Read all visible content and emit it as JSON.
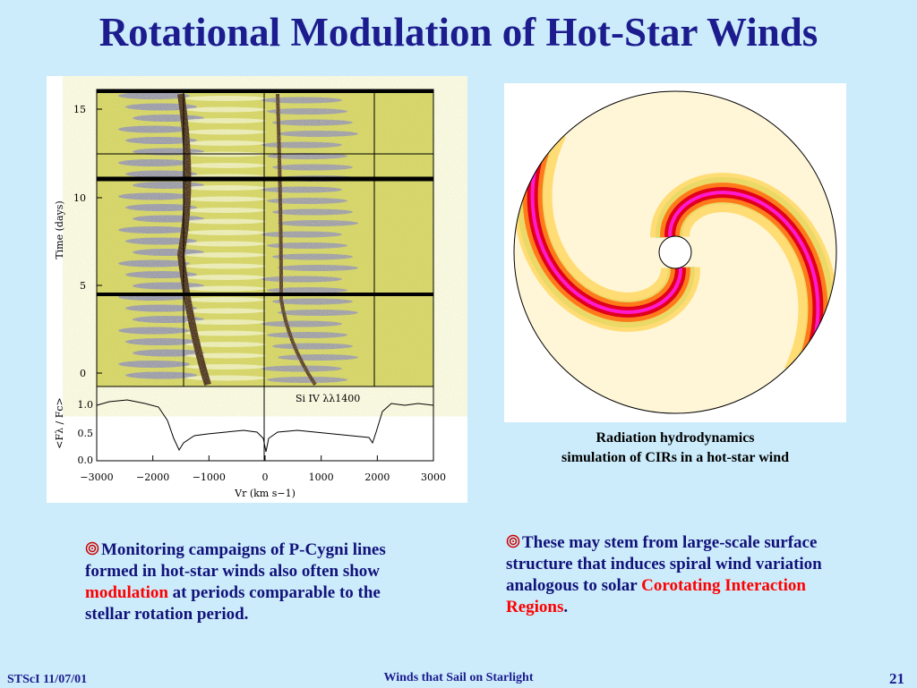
{
  "title": "Rotational Modulation of Hot-Star Winds",
  "left_figure": {
    "top_y_label": "Time (days)",
    "top_y_ticks": [
      "15",
      "10",
      "5",
      "0"
    ],
    "bottom_y_label": "<Fλ / Fc>",
    "bottom_y_ticks": [
      "1.0",
      "0.5",
      "0.0"
    ],
    "annotation": "Si IV λλ1400",
    "x_ticks": [
      "−3000",
      "−2000",
      "−1000",
      "0",
      "1000",
      "2000",
      "3000"
    ],
    "x_label": "Vr (km s−1)"
  },
  "right_figure": {
    "caption": [
      "Radiation hydrodynamics",
      "simulation of CIRs in a hot-star wind"
    ]
  },
  "bullets": [
    {
      "before": "Monitoring campaigns of P-Cygni lines formed in hot-star winds also often show ",
      "highlight": "modulation",
      "after": " at periods comparable to the stellar rotation period."
    },
    {
      "before": "These may stem from large-scale surface structure that  induces spiral wind variation analogous to solar ",
      "highlight": "Corotating Interaction Regions",
      "after": "."
    }
  ],
  "footer": {
    "left": "STScI 11/07/01",
    "center": "Winds that Sail on Starlight",
    "right": "21"
  }
}
